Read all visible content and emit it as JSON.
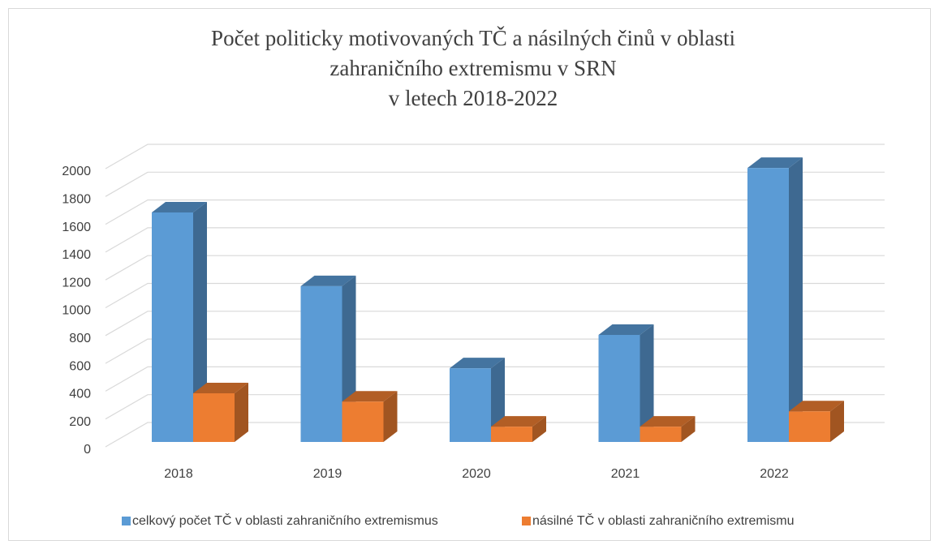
{
  "chart_data": {
    "type": "bar3d",
    "title": "Počet politicky motivovaných TČ a násilných činů v oblasti\nzahraničního extremismu v SRN\nv letech 2018-2022",
    "categories": [
      "2018",
      "2019",
      "2020",
      "2021",
      "2022"
    ],
    "series": [
      {
        "name": "celkový počet TČ v oblasti zahraničního extremismus",
        "color": "#5b9bd5",
        "values": [
          1650,
          1120,
          530,
          770,
          1970
        ]
      },
      {
        "name": "násilné TČ v oblasti zahraničního extremismu",
        "color": "#ed7d31",
        "values": [
          350,
          290,
          110,
          110,
          220
        ]
      }
    ],
    "ylim": [
      0,
      2000
    ],
    "yticks": [
      0,
      200,
      400,
      600,
      800,
      1000,
      1200,
      1400,
      1600,
      1800,
      2000
    ],
    "grid": true,
    "legend": "bottom"
  }
}
